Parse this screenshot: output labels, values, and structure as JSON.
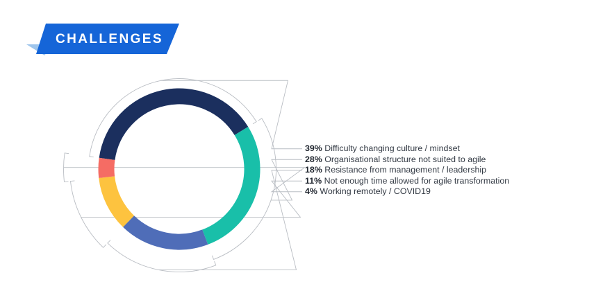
{
  "banner": {
    "title": "CHALLENGES",
    "colors": {
      "main": "#1565d8",
      "fold": "#9ec5ec"
    }
  },
  "chart_data": {
    "type": "pie",
    "title": "CHALLENGES",
    "unit": "%",
    "slices": [
      {
        "percent": 39,
        "pct_label": "39%",
        "label": "Difficulty changing culture / mindset",
        "color": "#1b2f5e"
      },
      {
        "percent": 28,
        "pct_label": "28%",
        "label": "Organisational structure not suited to agile",
        "color": "#19bfa9"
      },
      {
        "percent": 18,
        "pct_label": "18%",
        "label": "Resistance from management / leadership",
        "color": "#4f6db8"
      },
      {
        "percent": 11,
        "pct_label": "11%",
        "label": "Not enough time allowed for agile transformation",
        "color": "#fdc33f"
      },
      {
        "percent": 4,
        "pct_label": "4%",
        "label": "Working remotely / COVID19",
        "color": "#f56c64"
      }
    ],
    "start_angle_deg": -82,
    "direction": "clockwise",
    "legend_position": "right",
    "leader_lines": true
  }
}
